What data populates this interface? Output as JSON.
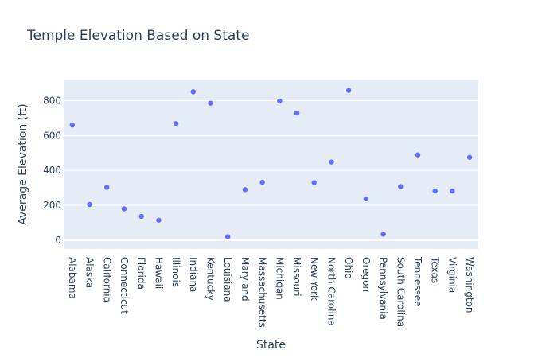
{
  "chart_data": {
    "type": "scatter",
    "title": "Temple Elevation Based on State",
    "xlabel": "State",
    "ylabel": "Average Elevation (ft)",
    "x": [
      "Alabama",
      "Alaska",
      "California",
      "Connecticut",
      "Florida",
      "Hawaii",
      "Illinois",
      "Indiana",
      "Kentucky",
      "Louisiana",
      "Maryland",
      "Massachusetts",
      "Michigan",
      "Missouri",
      "New York",
      "North Carolina",
      "Ohio",
      "Oregon",
      "Pennsylvania",
      "South Carolina",
      "Tennessee",
      "Texas",
      "Virginia",
      "Washington"
    ],
    "y": [
      660,
      205,
      303,
      180,
      137,
      115,
      668,
      850,
      785,
      20,
      290,
      332,
      797,
      728,
      330,
      448,
      858,
      237,
      35,
      307,
      489,
      282,
      282,
      475
    ],
    "ylim": [
      -50,
      920
    ],
    "yticks": [
      0,
      200,
      400,
      600,
      800
    ],
    "grid": true,
    "marker_color": "#636efa",
    "plot_bg": "#e5ecf6"
  }
}
